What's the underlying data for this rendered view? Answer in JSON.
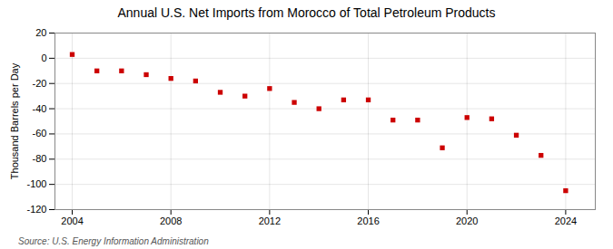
{
  "chart_data": {
    "type": "scatter",
    "title": "Annual U.S. Net Imports from Morocco of Total Petroleum Products",
    "ylabel": "Thousand Barrels per Day",
    "source": "Source: U.S. Energy Information Administration",
    "x": [
      2004,
      2005,
      2006,
      2007,
      2008,
      2009,
      2010,
      2011,
      2012,
      2013,
      2014,
      2015,
      2016,
      2017,
      2018,
      2019,
      2020,
      2021,
      2022,
      2023,
      2024
    ],
    "values": [
      3,
      -10,
      -10,
      -13,
      -16,
      -18,
      -27,
      -30,
      -24,
      -35,
      -40,
      -33,
      -33,
      -49,
      -49,
      -71,
      -47,
      -48,
      -61,
      -77,
      -105
    ],
    "color": "#cc0000",
    "marker": "square",
    "grid": true,
    "xlim": [
      2003.3,
      2025.2
    ],
    "xticks": [
      2004,
      2008,
      2012,
      2016,
      2020,
      2024
    ],
    "ylim": [
      -120,
      20
    ],
    "yticks": [
      -120,
      -100,
      -80,
      -60,
      -40,
      -20,
      0,
      20
    ]
  }
}
